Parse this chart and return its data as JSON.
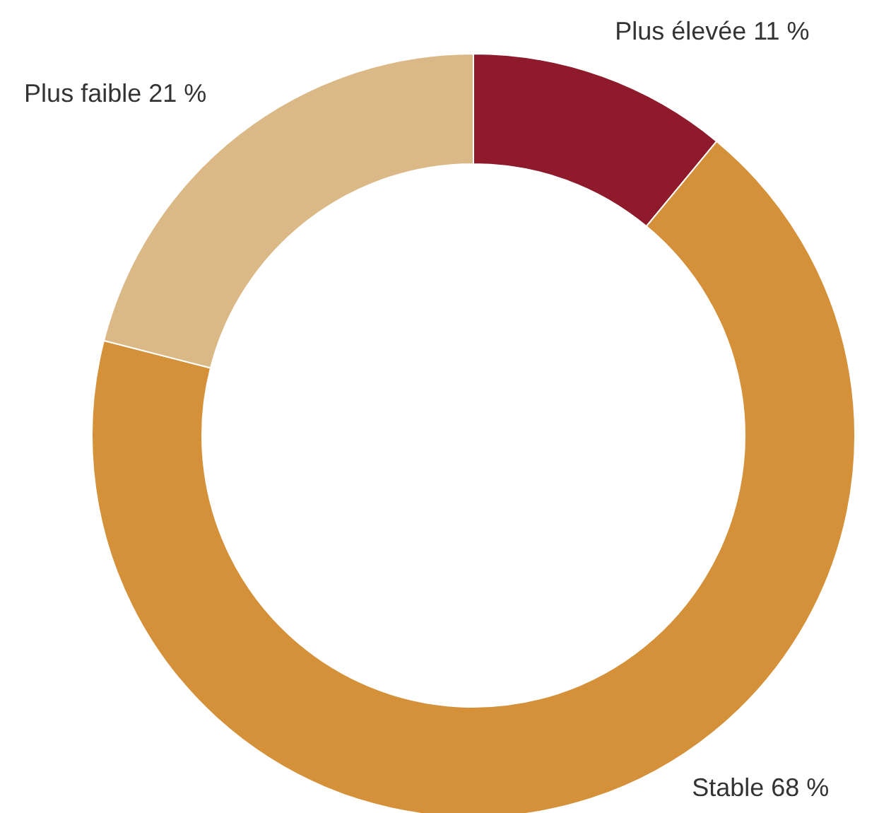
{
  "chart_data": {
    "type": "donut",
    "categories": [
      "Plus élevée",
      "Stable",
      "Plus faible"
    ],
    "values": [
      11,
      68,
      21
    ],
    "value_labels": [
      "11 %",
      "68 %",
      "21 %"
    ],
    "colors": [
      "#8e1a2b",
      "#d4913a",
      "#dbb987"
    ]
  }
}
